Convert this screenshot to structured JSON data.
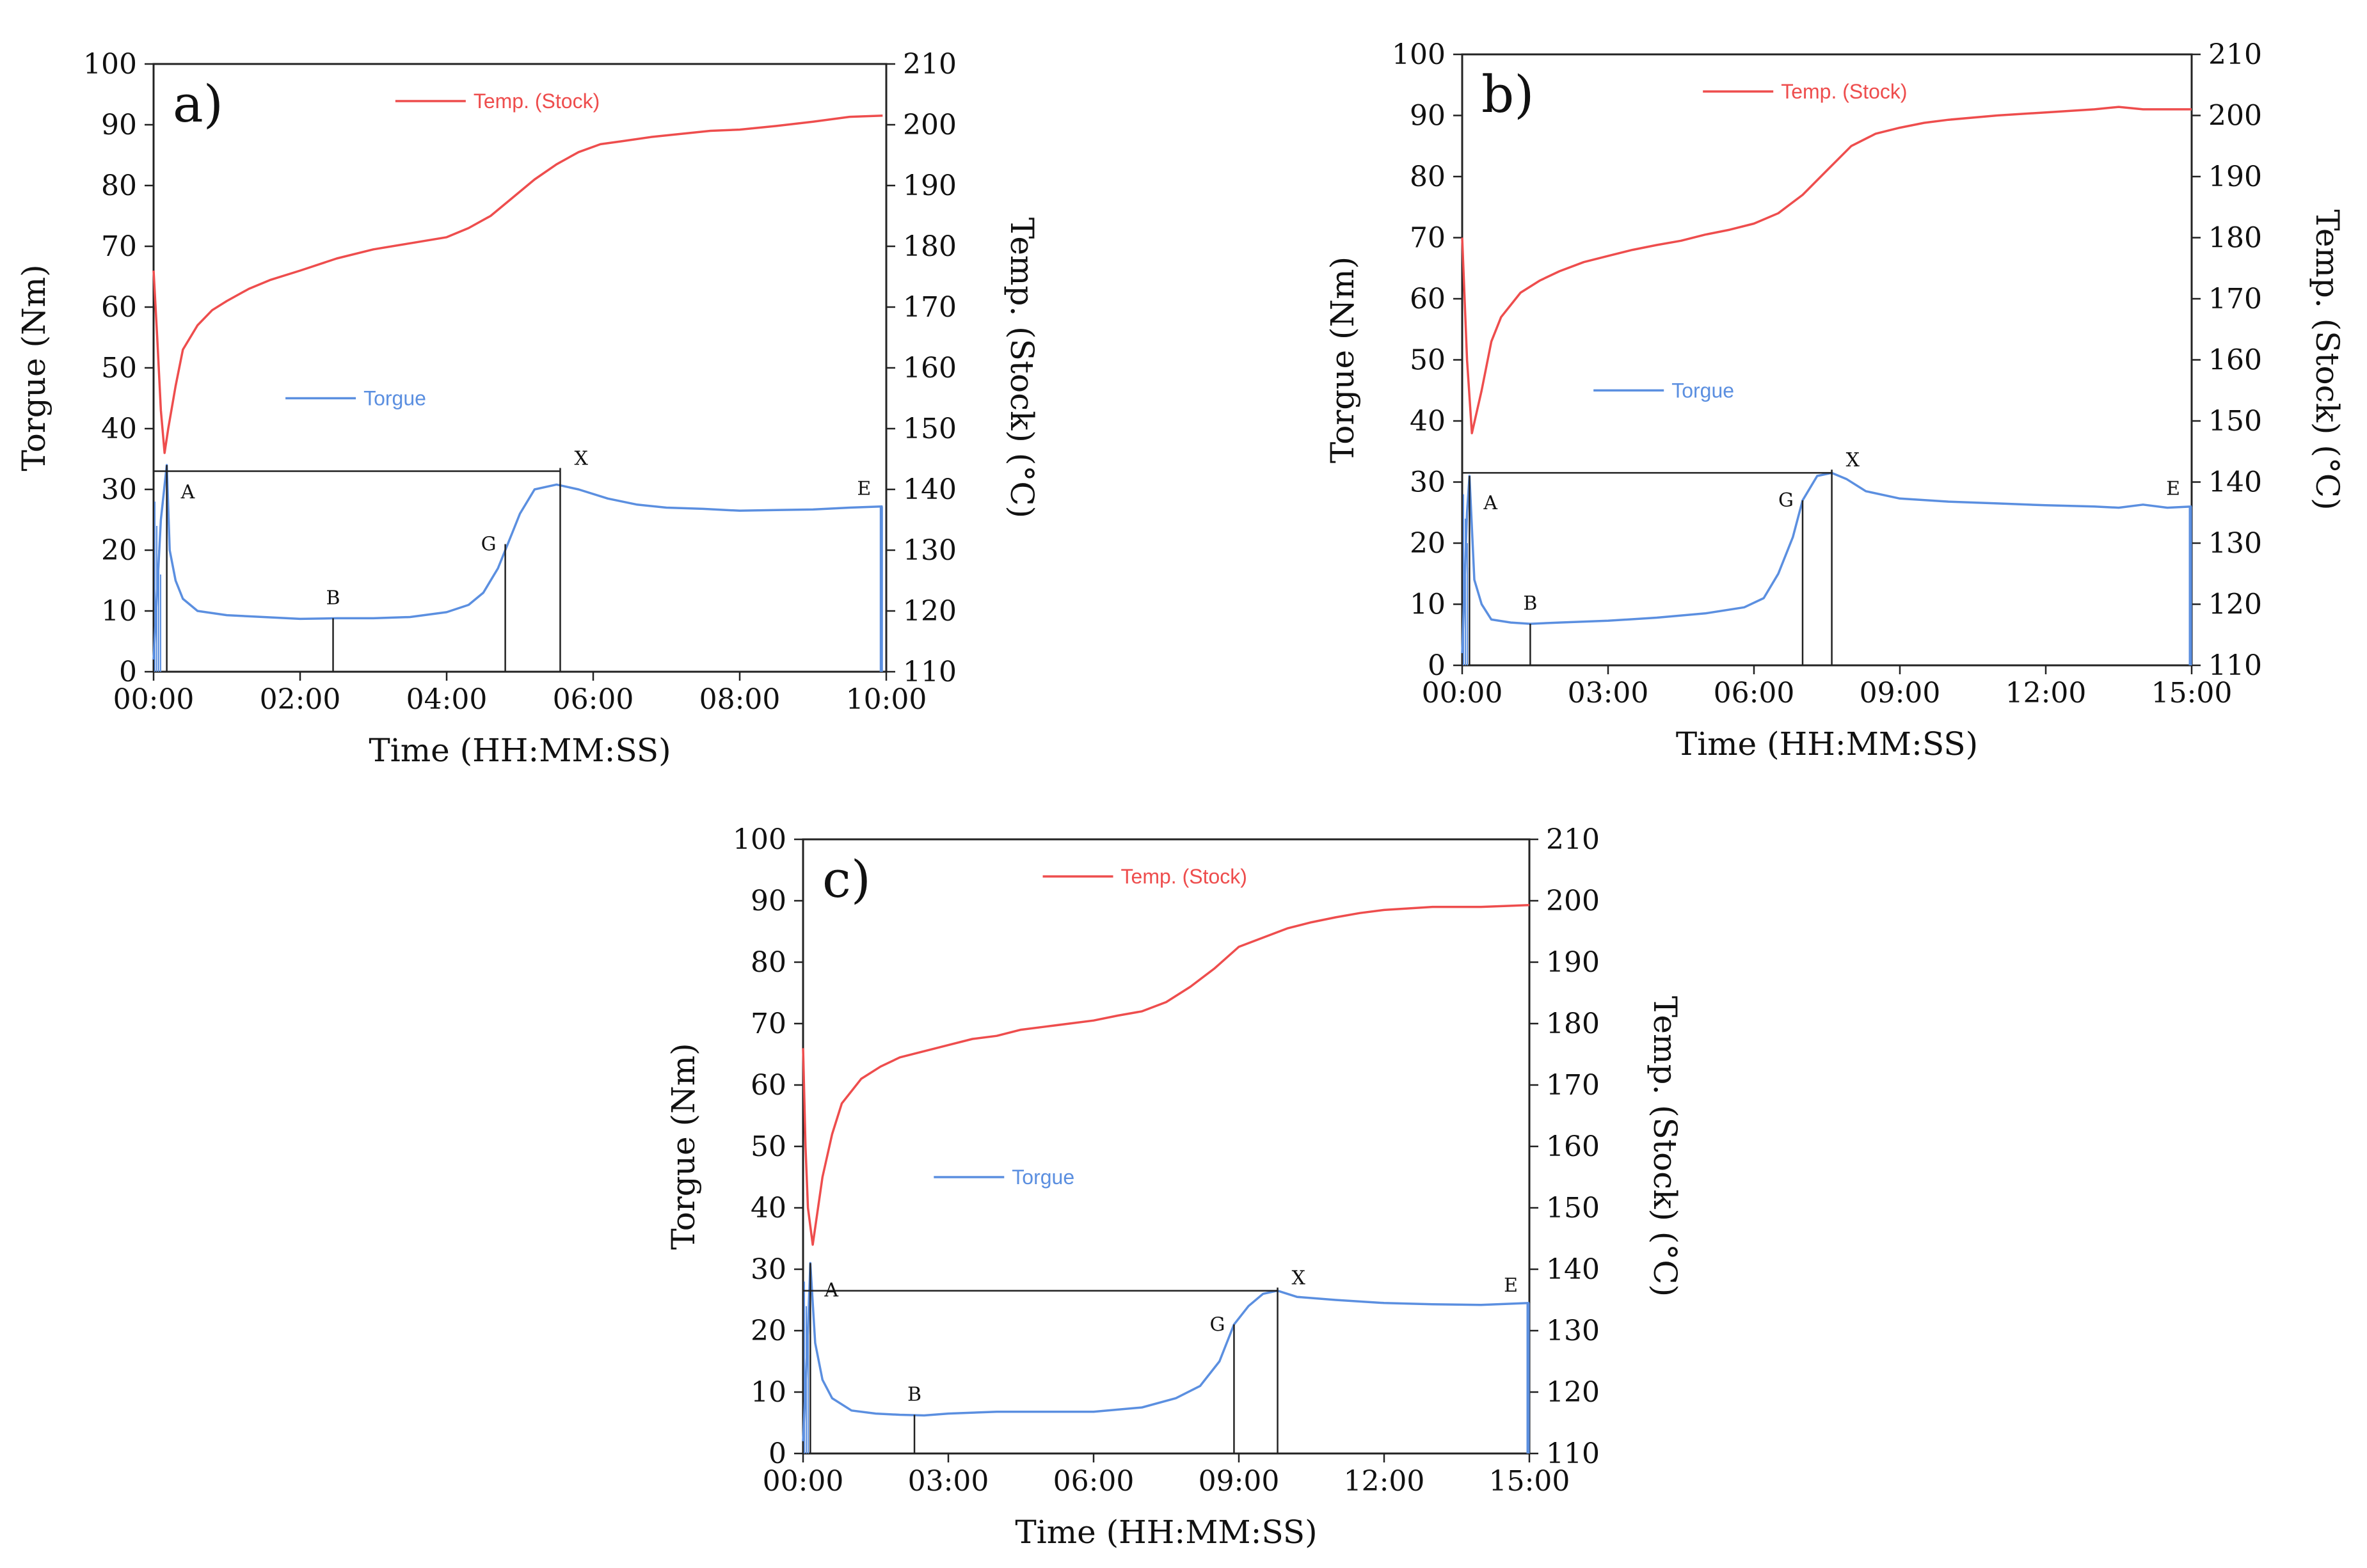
{
  "chart_data": [
    {
      "panel": "a)",
      "type": "line",
      "xlabel": "Time (HH:MM:SS)",
      "ylabel": "Torgue (Nm)",
      "y2label": "Temp. (Stock) (°C)",
      "ylim": [
        0,
        100
      ],
      "y2lim": [
        110,
        210
      ],
      "xlim_min": [
        0,
        10
      ],
      "x_ticks": [
        "00:00",
        "02:00",
        "04:00",
        "06:00",
        "08:00",
        "10:00"
      ],
      "x_tick_values": [
        0,
        2,
        4,
        6,
        8,
        10
      ],
      "y_ticks": [
        0,
        10,
        20,
        30,
        40,
        50,
        60,
        70,
        80,
        90,
        100
      ],
      "y2_ticks": [
        110,
        120,
        130,
        140,
        150,
        160,
        170,
        180,
        190,
        200,
        210
      ],
      "colors": {
        "torque": "#5b8fe0",
        "temp": "#ee4d4d",
        "axis": "#222222"
      },
      "series": [
        {
          "name": "Torgue",
          "axis": "left",
          "x": [
            0,
            0.1,
            0.18,
            0.22,
            0.3,
            0.4,
            0.6,
            1.0,
            1.5,
            2.0,
            2.5,
            3.0,
            3.5,
            4.0,
            4.3,
            4.5,
            4.7,
            4.9,
            5.0,
            5.2,
            5.5,
            5.8,
            6.2,
            6.6,
            7.0,
            7.5,
            8.0,
            8.5,
            9.0,
            9.5,
            9.95
          ],
          "values": [
            2,
            25,
            34,
            20,
            15,
            12,
            10,
            9.3,
            9,
            8.7,
            8.8,
            8.8,
            9,
            9.8,
            11,
            13,
            17,
            23,
            26,
            30,
            30.8,
            30,
            28.5,
            27.5,
            27,
            26.8,
            26.5,
            26.6,
            26.7,
            27,
            27.2
          ]
        },
        {
          "name": "Temp. (Stock)",
          "axis": "right",
          "x": [
            0,
            0.05,
            0.1,
            0.15,
            0.2,
            0.3,
            0.4,
            0.6,
            0.8,
            1.0,
            1.3,
            1.6,
            2.0,
            2.5,
            3.0,
            3.5,
            4.0,
            4.3,
            4.6,
            4.9,
            5.2,
            5.5,
            5.8,
            6.1,
            6.4,
            6.8,
            7.2,
            7.6,
            8.0,
            8.5,
            9.0,
            9.5,
            9.95
          ],
          "values": [
            176,
            165,
            153,
            146,
            150,
            157,
            163,
            167,
            169.5,
            171,
            173,
            174.5,
            176,
            178,
            179.5,
            180.5,
            181.5,
            183,
            185,
            188,
            191,
            193.5,
            195.5,
            196.8,
            197.3,
            198,
            198.5,
            199,
            199.2,
            199.8,
            200.5,
            201.3,
            201.5
          ]
        }
      ],
      "annotations": [
        {
          "label": "A",
          "x": 0.18,
          "y": 34
        },
        {
          "label": "B",
          "x": 2.45,
          "y": 8.8
        },
        {
          "label": "G",
          "x": 4.8,
          "y": 21
        },
        {
          "label": "X",
          "x": 5.55,
          "y": 33
        },
        {
          "label": "E",
          "x": 9.95,
          "y": 27.2
        }
      ],
      "legend": [
        {
          "label": "Temp. (Stock)",
          "series": "Temp. (Stock)",
          "position": "top-center"
        },
        {
          "label": "Torgue",
          "series": "Torgue",
          "position": "center-left"
        }
      ]
    },
    {
      "panel": "b)",
      "type": "line",
      "xlabel": "Time (HH:MM:SS)",
      "ylabel": "Torgue (Nm)",
      "y2label": "Temp. (Stock) (°C)",
      "ylim": [
        0,
        100
      ],
      "y2lim": [
        110,
        210
      ],
      "xlim_min": [
        0,
        15
      ],
      "x_ticks": [
        "00:00",
        "03:00",
        "06:00",
        "09:00",
        "12:00",
        "15:00"
      ],
      "x_tick_values": [
        0,
        3,
        6,
        9,
        12,
        15
      ],
      "y_ticks": [
        0,
        10,
        20,
        30,
        40,
        50,
        60,
        70,
        80,
        90,
        100
      ],
      "y2_ticks": [
        110,
        120,
        130,
        140,
        150,
        160,
        170,
        180,
        190,
        200,
        210
      ],
      "colors": {
        "torque": "#5b8fe0",
        "temp": "#ee4d4d",
        "axis": "#222222"
      },
      "series": [
        {
          "name": "Torgue",
          "axis": "left",
          "x": [
            0,
            0.1,
            0.15,
            0.25,
            0.4,
            0.6,
            1.0,
            1.4,
            2.0,
            3.0,
            4.0,
            5.0,
            5.8,
            6.2,
            6.5,
            6.8,
            7.0,
            7.3,
            7.6,
            7.9,
            8.3,
            9.0,
            10,
            11,
            12,
            13,
            13.5,
            14,
            14.5,
            15
          ],
          "values": [
            2,
            25,
            31,
            14,
            10,
            7.5,
            7,
            6.8,
            7,
            7.3,
            7.8,
            8.5,
            9.5,
            11,
            15,
            21,
            27,
            31,
            31.5,
            30.5,
            28.5,
            27.3,
            26.8,
            26.5,
            26.2,
            26,
            25.8,
            26.3,
            25.8,
            26
          ]
        },
        {
          "name": "Temp. (Stock)",
          "axis": "right",
          "x": [
            0,
            0.05,
            0.1,
            0.2,
            0.4,
            0.6,
            0.8,
            1.2,
            1.6,
            2.0,
            2.5,
            3.0,
            3.5,
            4.0,
            4.5,
            5.0,
            5.5,
            6.0,
            6.5,
            7.0,
            7.5,
            8.0,
            8.5,
            9.0,
            9.5,
            10,
            11,
            12,
            13,
            13.5,
            14,
            15
          ],
          "values": [
            180,
            170,
            160,
            148,
            155,
            163,
            167,
            171,
            173,
            174.5,
            176,
            177,
            178,
            178.8,
            179.5,
            180.5,
            181.3,
            182.3,
            184,
            187,
            191,
            195,
            197,
            198,
            198.8,
            199.3,
            200,
            200.5,
            201,
            201.4,
            201,
            201
          ]
        }
      ],
      "annotations": [
        {
          "label": "A",
          "x": 0.15,
          "y": 31
        },
        {
          "label": "B",
          "x": 1.4,
          "y": 6.8
        },
        {
          "label": "G",
          "x": 7.0,
          "y": 27
        },
        {
          "label": "X",
          "x": 7.6,
          "y": 31.5
        },
        {
          "label": "E",
          "x": 15,
          "y": 26
        }
      ],
      "legend": [
        {
          "label": "Temp. (Stock)",
          "series": "Temp. (Stock)",
          "position": "top-center"
        },
        {
          "label": "Torgue",
          "series": "Torgue",
          "position": "center-left"
        }
      ]
    },
    {
      "panel": "c)",
      "type": "line",
      "xlabel": "Time (HH:MM:SS)",
      "ylabel": "Torgue (Nm)",
      "y2label": "Temp. (Stock) (°C)",
      "ylim": [
        0,
        100
      ],
      "y2lim": [
        110,
        210
      ],
      "xlim_min": [
        0,
        15
      ],
      "x_ticks": [
        "00:00",
        "03:00",
        "06:00",
        "09:00",
        "12:00",
        "15:00"
      ],
      "x_tick_values": [
        0,
        3,
        6,
        9,
        12,
        15
      ],
      "y_ticks": [
        0,
        10,
        20,
        30,
        40,
        50,
        60,
        70,
        80,
        90,
        100
      ],
      "y2_ticks": [
        110,
        120,
        130,
        140,
        150,
        160,
        170,
        180,
        190,
        200,
        210
      ],
      "colors": {
        "torque": "#5b8fe0",
        "temp": "#ee4d4d",
        "axis": "#222222"
      },
      "series": [
        {
          "name": "Torgue",
          "axis": "left",
          "x": [
            0,
            0.1,
            0.15,
            0.25,
            0.4,
            0.6,
            1.0,
            1.5,
            2.0,
            2.5,
            3.0,
            4.0,
            5.0,
            6.0,
            7.0,
            7.7,
            8.2,
            8.6,
            8.9,
            9.2,
            9.5,
            9.8,
            10.2,
            11,
            12,
            13,
            14,
            15
          ],
          "values": [
            2,
            20,
            31,
            18,
            12,
            9,
            7,
            6.5,
            6.3,
            6.2,
            6.5,
            6.8,
            6.8,
            6.8,
            7.5,
            9,
            11,
            15,
            21,
            24,
            26,
            26.5,
            25.5,
            25,
            24.5,
            24.3,
            24.2,
            24.5
          ]
        },
        {
          "name": "Temp. (Stock)",
          "axis": "right",
          "x": [
            0,
            0.05,
            0.1,
            0.2,
            0.4,
            0.6,
            0.8,
            1.2,
            1.6,
            2.0,
            2.5,
            3.0,
            3.5,
            4.0,
            4.5,
            5.0,
            5.5,
            6.0,
            6.5,
            7.0,
            7.5,
            8.0,
            8.5,
            9.0,
            9.5,
            10,
            10.5,
            11,
            11.5,
            12,
            13,
            14,
            15
          ],
          "values": [
            176,
            160,
            150,
            144,
            155,
            162,
            167,
            171,
            173,
            174.5,
            175.5,
            176.5,
            177.5,
            178,
            179,
            179.5,
            180,
            180.5,
            181.3,
            182,
            183.5,
            186,
            189,
            192.5,
            194,
            195.5,
            196.5,
            197.3,
            198,
            198.5,
            199,
            199,
            199.3
          ]
        }
      ],
      "annotations": [
        {
          "label": "A",
          "x": 0.15,
          "y": 31
        },
        {
          "label": "B",
          "x": 2.3,
          "y": 6.3
        },
        {
          "label": "G",
          "x": 8.9,
          "y": 21
        },
        {
          "label": "X",
          "x": 9.8,
          "y": 26.5
        },
        {
          "label": "E",
          "x": 15,
          "y": 24.5
        }
      ],
      "legend": [
        {
          "label": "Temp. (Stock)",
          "series": "Temp. (Stock)",
          "position": "top-center"
        },
        {
          "label": "Torgue",
          "series": "Torgue",
          "position": "center-left"
        }
      ]
    }
  ]
}
